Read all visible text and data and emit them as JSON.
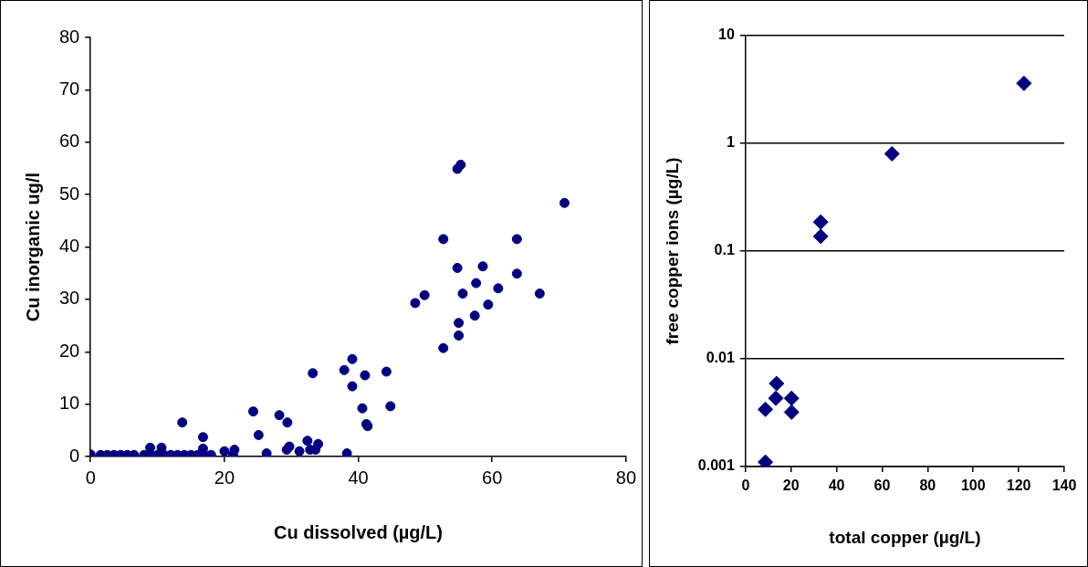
{
  "chart_data": [
    {
      "type": "scatter",
      "xlabel": "Cu dissolved (µg/L)",
      "ylabel": "Cu inorganic ug/l",
      "xlim": [
        0,
        80
      ],
      "ylim": [
        0,
        80
      ],
      "xticks": [
        0,
        20,
        40,
        60,
        80
      ],
      "yticks": [
        0,
        10,
        20,
        30,
        40,
        50,
        60,
        70,
        80
      ],
      "grid": false,
      "legend": false,
      "marker": "circle",
      "series": [
        {
          "color": "#000080",
          "x": [
            0,
            1.5,
            2.5,
            3.5,
            4.5,
            5.5,
            6.5,
            8,
            9,
            10,
            11,
            12,
            13,
            14,
            15,
            16,
            17,
            18,
            8.9,
            10.6,
            13.7,
            16.8,
            16.8,
            20.0,
            21.5,
            21.3,
            24.3,
            25.1,
            26.3,
            28.2,
            29.4,
            29.7,
            29.3,
            31.2,
            32.4,
            32.8,
            33.6,
            34.0,
            33.2,
            37.9,
            38.3,
            39.1,
            39.1,
            40.6,
            41.0,
            41.2,
            41.4,
            44.2,
            44.8,
            48.5,
            49.9,
            52.7,
            52.7,
            54.8,
            55.3,
            54.8,
            55.0,
            55.0,
            55.6,
            57.4,
            57.6,
            58.6,
            59.4,
            60.9,
            63.7,
            63.7,
            67.1,
            70.8
          ],
          "values": [
            0.4,
            0.3,
            0.3,
            0.3,
            0.3,
            0.3,
            0.3,
            0.3,
            0.3,
            0.3,
            0.3,
            0.3,
            0.3,
            0.3,
            0.3,
            0.3,
            0.3,
            0.3,
            1.7,
            1.7,
            6.5,
            3.7,
            1.5,
            1.0,
            1.3,
            0.3,
            8.6,
            4.1,
            0.6,
            7.9,
            6.5,
            1.9,
            1.3,
            1.0,
            3.0,
            1.3,
            1.3,
            2.4,
            15.9,
            16.5,
            0.6,
            18.6,
            13.4,
            9.2,
            15.5,
            6.2,
            5.8,
            16.2,
            9.6,
            29.3,
            30.8,
            41.5,
            20.7,
            54.9,
            55.7,
            36.0,
            25.5,
            23.1,
            31.1,
            26.9,
            33.1,
            36.3,
            29.0,
            32.1,
            41.5,
            34.9,
            31.1,
            48.4
          ]
        }
      ]
    },
    {
      "type": "scatter",
      "xlabel": "total copper (µg/L)",
      "ylabel": "free copper ions (µg/L)",
      "xlim": [
        0,
        140
      ],
      "ylim": [
        0.001,
        10
      ],
      "xticks": [
        0,
        20,
        40,
        60,
        80,
        100,
        120,
        140
      ],
      "yticks": [
        0.001,
        0.01,
        0.1,
        1,
        10
      ],
      "log": "y",
      "grid": "y",
      "legend": false,
      "marker": "diamond",
      "series": [
        {
          "color": "#000080",
          "x": [
            8.7,
            8.7,
            13.3,
            13.6,
            20.2,
            20.2,
            33.0,
            33.0,
            64.3,
            122.3
          ],
          "values": [
            0.0011,
            0.0034,
            0.0043,
            0.0059,
            0.0043,
            0.0032,
            0.186,
            0.137,
            0.8,
            3.6
          ]
        }
      ]
    }
  ]
}
